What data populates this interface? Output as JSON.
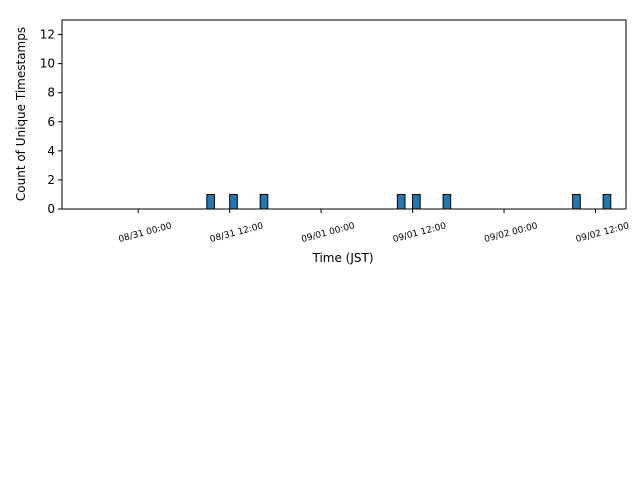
{
  "chart_data": {
    "type": "histogram",
    "xlabel": "Time (JST)",
    "ylabel": "Count of Unique Timestamps",
    "bins": [
      "08/30 18:00",
      "08/30 19:00",
      "08/30 20:00",
      "08/30 21:00",
      "08/30 22:00",
      "08/30 23:00",
      "08/31 00:00",
      "08/31 01:00",
      "08/31 02:00",
      "08/31 03:00",
      "08/31 04:00",
      "08/31 05:00",
      "08/31 06:00",
      "08/31 07:00",
      "08/31 08:00",
      "08/31 09:00",
      "08/31 10:00",
      "08/31 11:00",
      "08/31 12:00",
      "08/31 13:00",
      "08/31 14:00",
      "08/31 15:00",
      "08/31 16:00",
      "08/31 17:00",
      "08/31 18:00",
      "08/31 19:00",
      "08/31 20:00",
      "08/31 21:00",
      "08/31 22:00",
      "08/31 23:00",
      "09/01 00:00",
      "09/01 01:00",
      "09/01 02:00",
      "09/01 03:00",
      "09/01 04:00",
      "09/01 05:00",
      "09/01 06:00",
      "09/01 07:00",
      "09/01 08:00",
      "09/01 09:00",
      "09/01 10:00",
      "09/01 11:00",
      "09/01 12:00",
      "09/01 13:00",
      "09/01 14:00",
      "09/01 15:00",
      "09/01 16:00",
      "09/01 17:00",
      "09/01 18:00",
      "09/01 19:00",
      "09/01 20:00",
      "09/01 21:00",
      "09/01 22:00",
      "09/01 23:00",
      "09/02 00:00",
      "09/02 01:00",
      "09/02 02:00",
      "09/02 03:00",
      "09/02 04:00",
      "09/02 05:00",
      "09/02 06:00",
      "09/02 07:00",
      "09/02 08:00",
      "09/02 09:00",
      "09/02 10:00",
      "09/02 11:00",
      "09/02 12:00",
      "09/02 13:00",
      "09/02 14:00"
    ],
    "values": [
      0,
      0,
      0,
      0,
      0,
      0,
      0,
      0,
      0,
      0,
      0,
      0,
      0,
      0,
      0,
      1,
      0,
      0,
      1,
      0,
      0,
      0,
      1,
      0,
      0,
      0,
      0,
      0,
      0,
      0,
      0,
      0,
      0,
      0,
      0,
      0,
      0,
      0,
      0,
      0,
      1,
      0,
      1,
      0,
      0,
      0,
      1,
      0,
      0,
      0,
      0,
      0,
      0,
      0,
      0,
      0,
      0,
      0,
      0,
      0,
      0,
      0,
      0,
      1,
      0,
      0,
      0,
      1
    ],
    "color": "#1f77b4",
    "xlim": [
      "08/30 14:00",
      "09/02 16:00"
    ],
    "xticks": [
      "08/31 00:00",
      "08/31 12:00",
      "09/01 00:00",
      "09/01 12:00",
      "09/02 00:00",
      "09/02 12:00"
    ],
    "ylim": [
      0,
      13
    ],
    "yticks": [
      0,
      2,
      4,
      6,
      8,
      10,
      12
    ]
  }
}
